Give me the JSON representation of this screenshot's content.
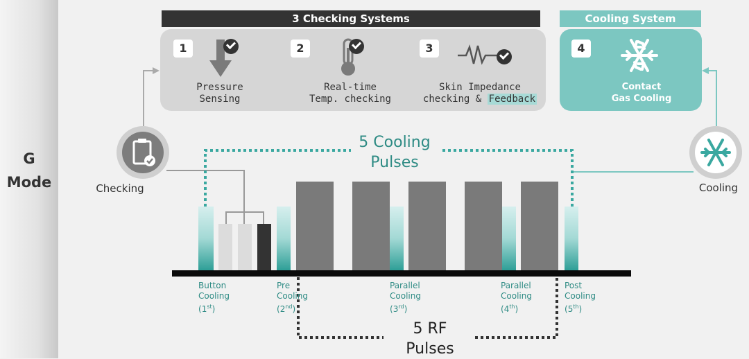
{
  "mode": {
    "line1": "G",
    "line2": "Mode"
  },
  "checking_header": "3 Checking Systems",
  "cooling_header": "Cooling System",
  "systems": [
    {
      "number": "1",
      "line1": "Pressure",
      "line2": "Sensing",
      "icon": "pressure-arrow-icon"
    },
    {
      "number": "2",
      "line1": "Real-time",
      "line2": "Temp. checking",
      "icon": "thermometer-icon"
    },
    {
      "number": "3",
      "line1": "Skin Impedance",
      "line2a": "checking & ",
      "line2b": "Feedback",
      "icon": "waveform-icon"
    },
    {
      "number": "4",
      "line1": "Contact",
      "line2": "Gas Cooling",
      "icon": "snowflake-icon"
    }
  ],
  "checking_label": "Checking",
  "cooling_label": "Cooling",
  "cooling_pulses": {
    "line1": "5 Cooling",
    "line2": "Pulses"
  },
  "rf_pulses": {
    "line1": "5 RF",
    "line2": "Pulses"
  },
  "pulse_labels": [
    {
      "line1": "Button",
      "line2": "Cooling",
      "num": "1",
      "sup": "st"
    },
    {
      "line1": "Pre",
      "line2": "Cooling",
      "num": "2",
      "sup": "nd"
    },
    {
      "line1": "Parallel",
      "line2": "Cooling",
      "num": "3",
      "sup": "rd"
    },
    {
      "line1": "Parallel",
      "line2": "Cooling",
      "num": "4",
      "sup": "th"
    },
    {
      "line1": "Post",
      "line2": "Cooling",
      "num": "5",
      "sup": "th"
    }
  ],
  "colors": {
    "teal": "#7cc7c1",
    "dark_header": "#333333",
    "rf_bar": "#7a7a7a",
    "panel": "#d6d6d6"
  }
}
